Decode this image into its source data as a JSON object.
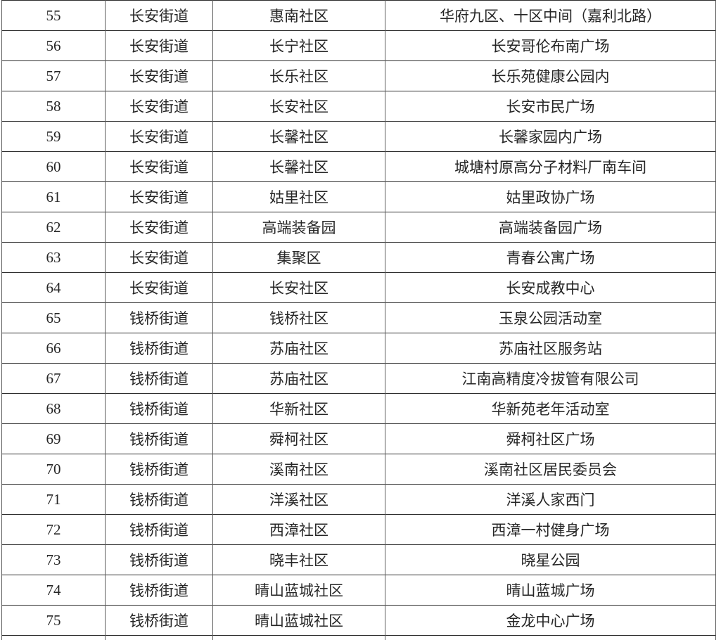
{
  "colors": {
    "background": "#ffffff",
    "horizontal_rule": "#2e2e2e",
    "vertical_rule": "#5c5c5c",
    "text": "#262626"
  },
  "table": {
    "row_count_visible": 21,
    "rows": [
      {
        "no": "55",
        "street": "长安街道",
        "community": "惠南社区",
        "location": "华府九区、十区中间（嘉利北路）"
      },
      {
        "no": "56",
        "street": "长安街道",
        "community": "长宁社区",
        "location": "长安哥伦布南广场"
      },
      {
        "no": "57",
        "street": "长安街道",
        "community": "长乐社区",
        "location": "长乐苑健康公园内"
      },
      {
        "no": "58",
        "street": "长安街道",
        "community": "长安社区",
        "location": "长安市民广场"
      },
      {
        "no": "59",
        "street": "长安街道",
        "community": "长馨社区",
        "location": "长馨家园内广场"
      },
      {
        "no": "60",
        "street": "长安街道",
        "community": "长馨社区",
        "location": "城塘村原高分子材料厂南车间"
      },
      {
        "no": "61",
        "street": "长安街道",
        "community": "姑里社区",
        "location": "姑里政协广场"
      },
      {
        "no": "62",
        "street": "长安街道",
        "community": "高端装备园",
        "location": "高端装备园广场"
      },
      {
        "no": "63",
        "street": "长安街道",
        "community": "集聚区",
        "location": "青春公寓广场"
      },
      {
        "no": "64",
        "street": "长安街道",
        "community": "长安社区",
        "location": "长安成教中心"
      },
      {
        "no": "65",
        "street": "钱桥街道",
        "community": "钱桥社区",
        "location": "玉泉公园活动室"
      },
      {
        "no": "66",
        "street": "钱桥街道",
        "community": "苏庙社区",
        "location": "苏庙社区服务站"
      },
      {
        "no": "67",
        "street": "钱桥街道",
        "community": "苏庙社区",
        "location": "江南高精度冷拔管有限公司"
      },
      {
        "no": "68",
        "street": "钱桥街道",
        "community": "华新社区",
        "location": "华新苑老年活动室"
      },
      {
        "no": "69",
        "street": "钱桥街道",
        "community": "舜柯社区",
        "location": "舜柯社区广场"
      },
      {
        "no": "70",
        "street": "钱桥街道",
        "community": "溪南社区",
        "location": "溪南社区居民委员会"
      },
      {
        "no": "71",
        "street": "钱桥街道",
        "community": "洋溪社区",
        "location": "洋溪人家西门"
      },
      {
        "no": "72",
        "street": "钱桥街道",
        "community": "西漳社区",
        "location": "西漳一村健身广场"
      },
      {
        "no": "73",
        "street": "钱桥街道",
        "community": "晓丰社区",
        "location": "晓星公园"
      },
      {
        "no": "74",
        "street": "钱桥街道",
        "community": "晴山蓝城社区",
        "location": "晴山蓝城广场"
      },
      {
        "no": "75",
        "street": "钱桥街道",
        "community": "晴山蓝城社区",
        "location": "金龙中心广场"
      }
    ]
  }
}
